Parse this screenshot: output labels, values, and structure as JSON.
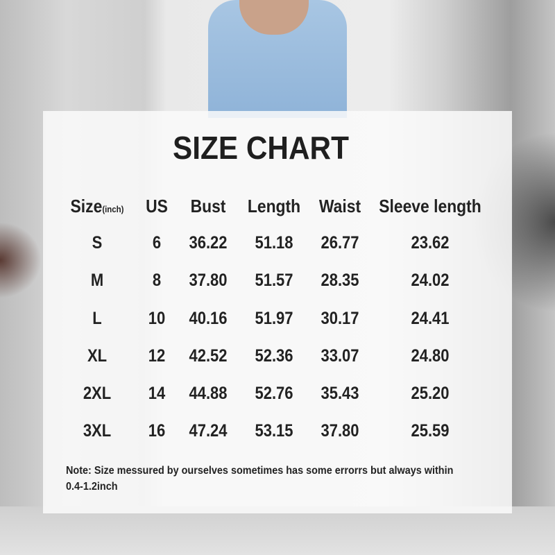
{
  "title": "SIZE CHART",
  "table": {
    "headers": [
      {
        "label": "Size",
        "sub": "(inch)"
      },
      {
        "label": "US"
      },
      {
        "label": "Bust"
      },
      {
        "label": "Length"
      },
      {
        "label": "Waist"
      },
      {
        "label": "Sleeve length"
      }
    ],
    "rows": [
      [
        "S",
        "6",
        "36.22",
        "51.18",
        "26.77",
        "23.62"
      ],
      [
        "M",
        "8",
        "37.80",
        "51.57",
        "28.35",
        "24.02"
      ],
      [
        "L",
        "10",
        "40.16",
        "51.97",
        "30.17",
        "24.41"
      ],
      [
        "XL",
        "12",
        "42.52",
        "52.36",
        "33.07",
        "24.80"
      ],
      [
        "2XL",
        "14",
        "44.88",
        "52.76",
        "35.43",
        "25.20"
      ],
      [
        "3XL",
        "16",
        "47.24",
        "53.15",
        "37.80",
        "25.59"
      ]
    ]
  },
  "note": "Note:  Size messured by ourselves sometimes has some errorrs but always within 0.4-1.2inch"
}
